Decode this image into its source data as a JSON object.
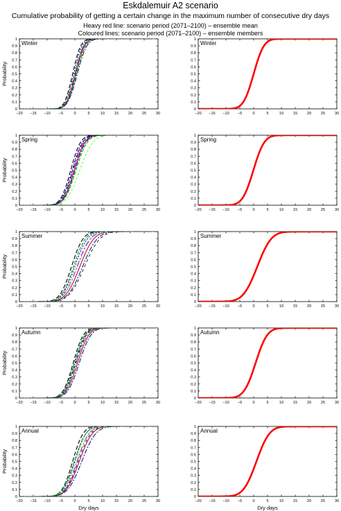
{
  "header": {
    "title": "Eskdalemuir A2 scenario",
    "subtitle": "Cumulative probability of getting a certain change in the maximum number of consecutive dry days",
    "legend_line1": "Heavy red line: scenario period (2071–2100) – ensemble mean",
    "legend_line2": "Coloured lines: scenario period (2071–2100) – ensemble members"
  },
  "axes": {
    "xlabel": "Dry days",
    "ylabel": "Probability",
    "xlim": [
      -20,
      30
    ],
    "ylim": [
      0,
      1
    ],
    "xticks": [
      "−20",
      "−15",
      "−10",
      "−5",
      "0",
      "5",
      "10",
      "15",
      "20",
      "25",
      "30"
    ],
    "yticks": [
      "0",
      "0.1",
      "0.2",
      "0.3",
      "0.4",
      "0.5",
      "0.6",
      "0.7",
      "0.8",
      "0.9",
      "1"
    ]
  },
  "colors": {
    "mean": "#ff0000",
    "members": [
      "#000000",
      "#0000cc",
      "#9900cc",
      "#cc0066",
      "#00aa00",
      "#66ff33",
      "#003366",
      "#333333"
    ]
  },
  "chart_data": [
    {
      "type": "line",
      "title": "Winter",
      "panel": "members",
      "xlim": [
        -20,
        30
      ],
      "ylim": [
        0,
        1
      ],
      "grid": false,
      "series": [
        {
          "values": [
            {
              "mu": -0.8,
              "s": 2.3
            }
          ]
        },
        {
          "values": [
            {
              "mu": -0.4,
              "s": 2.4
            }
          ]
        },
        {
          "values": [
            {
              "mu": 0.0,
              "s": 2.5
            }
          ]
        },
        {
          "values": [
            {
              "mu": 0.3,
              "s": 2.5
            }
          ]
        },
        {
          "values": [
            {
              "mu": 0.6,
              "s": 2.6
            }
          ]
        },
        {
          "values": [
            {
              "mu": -0.2,
              "s": 2.6
            }
          ]
        },
        {
          "values": [
            {
              "mu": 0.9,
              "s": 2.7
            }
          ]
        },
        {
          "values": [
            {
              "mu": 0.2,
              "s": 2.4
            }
          ]
        }
      ]
    },
    {
      "type": "line",
      "title": "Winter",
      "panel": "mean",
      "xlim": [
        -20,
        30
      ],
      "ylim": [
        0,
        1
      ],
      "grid": false,
      "series": [
        {
          "values": [
            {
              "mu": 0.0,
              "s": 2.9
            }
          ]
        }
      ]
    },
    {
      "type": "line",
      "title": "Spring",
      "panel": "members",
      "xlim": [
        -20,
        30
      ],
      "ylim": [
        0,
        1
      ],
      "grid": false,
      "series": [
        {
          "values": [
            {
              "mu": -1.5,
              "s": 2.8
            }
          ]
        },
        {
          "values": [
            {
              "mu": -1.0,
              "s": 2.9
            }
          ]
        },
        {
          "values": [
            {
              "mu": -0.6,
              "s": 3.0
            }
          ]
        },
        {
          "values": [
            {
              "mu": -0.2,
              "s": 3.0
            }
          ]
        },
        {
          "values": [
            {
              "mu": 0.4,
              "s": 3.2
            }
          ]
        },
        {
          "values": [
            {
              "mu": 1.8,
              "s": 3.7
            }
          ]
        },
        {
          "values": [
            {
              "mu": 0.0,
              "s": 3.1
            }
          ]
        },
        {
          "values": [
            {
              "mu": -0.8,
              "s": 2.9
            }
          ]
        }
      ]
    },
    {
      "type": "line",
      "title": "Spring",
      "panel": "mean",
      "xlim": [
        -20,
        30
      ],
      "ylim": [
        0,
        1
      ],
      "grid": false,
      "series": [
        {
          "values": [
            {
              "mu": -0.1,
              "s": 3.1
            }
          ]
        }
      ]
    },
    {
      "type": "line",
      "title": "Summer",
      "panel": "members",
      "xlim": [
        -20,
        30
      ],
      "ylim": [
        0,
        1
      ],
      "grid": false,
      "series": [
        {
          "values": [
            {
              "mu": -1.2,
              "s": 3.3
            }
          ]
        },
        {
          "values": [
            {
              "mu": 0.0,
              "s": 3.6
            }
          ]
        },
        {
          "values": [
            {
              "mu": 0.8,
              "s": 3.8
            }
          ]
        },
        {
          "values": [
            {
              "mu": 1.8,
              "s": 4.0
            }
          ]
        },
        {
          "values": [
            {
              "mu": -0.5,
              "s": 3.4
            }
          ]
        },
        {
          "values": [
            {
              "mu": 1.0,
              "s": 3.9
            }
          ]
        },
        {
          "values": [
            {
              "mu": 2.8,
              "s": 4.2
            }
          ]
        },
        {
          "values": [
            {
              "mu": 3.5,
              "s": 4.4
            }
          ]
        }
      ]
    },
    {
      "type": "line",
      "title": "Summer",
      "panel": "mean",
      "xlim": [
        -20,
        30
      ],
      "ylim": [
        0,
        1
      ],
      "grid": false,
      "series": [
        {
          "values": [
            {
              "mu": 1.3,
              "s": 4.0
            }
          ]
        }
      ]
    },
    {
      "type": "line",
      "title": "Autumn",
      "panel": "members",
      "xlim": [
        -20,
        30
      ],
      "ylim": [
        0,
        1
      ],
      "grid": false,
      "series": [
        {
          "values": [
            {
              "mu": -0.6,
              "s": 2.9
            }
          ]
        },
        {
          "values": [
            {
              "mu": 0.0,
              "s": 3.0
            }
          ]
        },
        {
          "values": [
            {
              "mu": 0.5,
              "s": 3.1
            }
          ]
        },
        {
          "values": [
            {
              "mu": 1.0,
              "s": 3.2
            }
          ]
        },
        {
          "values": [
            {
              "mu": -0.2,
              "s": 3.0
            }
          ]
        },
        {
          "values": [
            {
              "mu": 0.7,
              "s": 3.1
            }
          ]
        },
        {
          "values": [
            {
              "mu": 1.6,
              "s": 3.3
            }
          ]
        },
        {
          "values": [
            {
              "mu": 0.3,
              "s": 3.0
            }
          ]
        }
      ]
    },
    {
      "type": "line",
      "title": "Autumn",
      "panel": "mean",
      "xlim": [
        -20,
        30
      ],
      "ylim": [
        0,
        1
      ],
      "grid": false,
      "series": [
        {
          "values": [
            {
              "mu": 0.7,
              "s": 3.3
            }
          ]
        }
      ]
    },
    {
      "type": "line",
      "title": "Annual",
      "panel": "members",
      "xlim": [
        -20,
        30
      ],
      "ylim": [
        0,
        1
      ],
      "grid": false,
      "series": [
        {
          "values": [
            {
              "mu": -0.8,
              "s": 3.0
            }
          ]
        },
        {
          "values": [
            {
              "mu": 0.0,
              "s": 3.2
            }
          ]
        },
        {
          "values": [
            {
              "mu": 0.8,
              "s": 3.4
            }
          ]
        },
        {
          "values": [
            {
              "mu": 1.6,
              "s": 3.7
            }
          ]
        },
        {
          "values": [
            {
              "mu": -0.2,
              "s": 3.3
            }
          ]
        },
        {
          "values": [
            {
              "mu": 0.6,
              "s": 3.5
            }
          ]
        },
        {
          "values": [
            {
              "mu": 2.5,
              "s": 4.0
            }
          ]
        },
        {
          "values": [
            {
              "mu": 1.2,
              "s": 3.6
            }
          ]
        }
      ]
    },
    {
      "type": "line",
      "title": "Annual",
      "panel": "mean",
      "xlim": [
        -20,
        30
      ],
      "ylim": [
        0,
        1
      ],
      "grid": false,
      "series": [
        {
          "values": [
            {
              "mu": 1.0,
              "s": 3.7
            }
          ]
        }
      ]
    }
  ]
}
